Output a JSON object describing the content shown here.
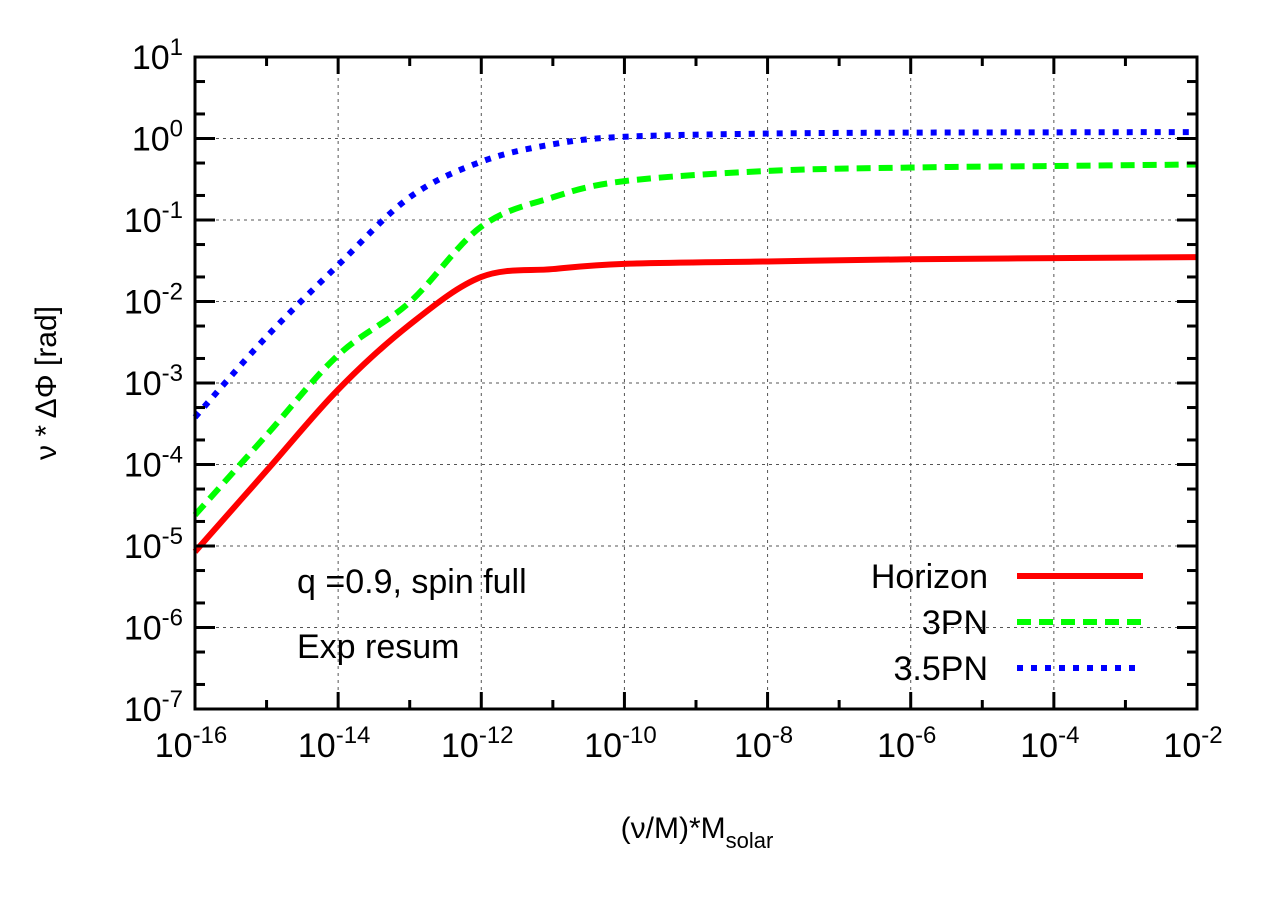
{
  "chart_data": {
    "type": "line",
    "xlabel": "(ν/M)*M",
    "xlabel_sub": "solar",
    "ylabel": "ν * ΔΦ [rad]",
    "xscale": "log",
    "yscale": "log",
    "xlim": [
      1e-16,
      0.01
    ],
    "ylim": [
      1e-07,
      10
    ],
    "grid": true,
    "legend_position": "bottom-right",
    "x_tick_exponents": [
      -16,
      -14,
      -12,
      -10,
      -8,
      -6,
      -4,
      -2
    ],
    "y_tick_exponents": [
      1,
      0,
      -1,
      -2,
      -3,
      -4,
      -5,
      -6,
      -7
    ],
    "tick_base": "10",
    "annotations": [
      "q =0.9, spin full",
      "Exp resum"
    ],
    "x": [
      1e-16,
      1e-15,
      1e-14,
      1e-13,
      1e-12,
      1e-11,
      1e-10,
      1e-08,
      1e-06,
      0.0001,
      0.01
    ],
    "series": [
      {
        "name": "Horizon",
        "color": "#ff0000",
        "style": "solid",
        "values": [
          8.5e-06,
          8.4e-05,
          0.00083,
          0.0052,
          0.02,
          0.025,
          0.029,
          0.031,
          0.033,
          0.034,
          0.035
        ]
      },
      {
        "name": "3PN",
        "color": "#00ff00",
        "style": "dashed",
        "values": [
          2.4e-05,
          0.00023,
          0.0022,
          0.0098,
          0.083,
          0.19,
          0.3,
          0.4,
          0.44,
          0.46,
          0.48
        ]
      },
      {
        "name": "3.5PN",
        "color": "#0000ff",
        "style": "dotted",
        "values": [
          0.00038,
          0.0037,
          0.028,
          0.19,
          0.52,
          0.85,
          1.05,
          1.15,
          1.18,
          1.19,
          1.2
        ]
      }
    ]
  }
}
